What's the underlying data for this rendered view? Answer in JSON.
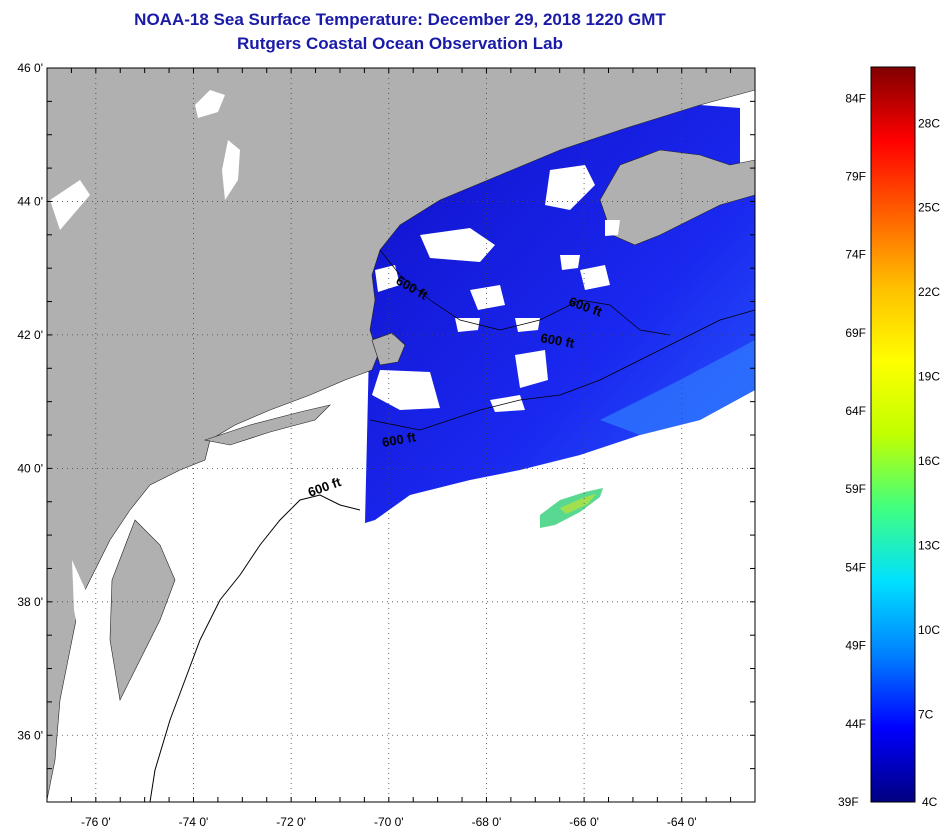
{
  "header": {
    "title": "NOAA-18 Sea Surface Temperature:  December 29, 2018 1220 GMT",
    "subtitle": "Rutgers Coastal Ocean Observation Lab"
  },
  "map": {
    "lat_range": [
      35,
      46
    ],
    "lon_range": [
      -77,
      -62.5
    ],
    "lat_labels": [
      {
        "lat": 46,
        "text": "46 0'"
      },
      {
        "lat": 44,
        "text": "44 0'"
      },
      {
        "lat": 42,
        "text": "42 0'"
      },
      {
        "lat": 40,
        "text": "40 0'"
      },
      {
        "lat": 38,
        "text": "38 0'"
      },
      {
        "lat": 36,
        "text": "36 0'"
      }
    ],
    "lon_labels": [
      {
        "lon": -76,
        "text": "-76 0'"
      },
      {
        "lon": -74,
        "text": "-74 0'"
      },
      {
        "lon": -72,
        "text": "-72 0'"
      },
      {
        "lon": -70,
        "text": "-70 0'"
      },
      {
        "lon": -68,
        "text": "-68 0'"
      },
      {
        "lon": -66,
        "text": "-66 0'"
      },
      {
        "lon": -64,
        "text": "-64 0'"
      }
    ],
    "contour_label": "600 ft",
    "land_color": "#b0b0b0",
    "cloud_color": "#ffffff"
  },
  "colorbar": {
    "colors": [
      "#000080",
      "#0000ff",
      "#0080ff",
      "#00e0ff",
      "#40ff80",
      "#c0ff00",
      "#ffff00",
      "#ffc000",
      "#ff6000",
      "#ff0000",
      "#800000"
    ],
    "fahrenheit": [
      "84F",
      "79F",
      "74F",
      "69F",
      "64F",
      "59F",
      "54F",
      "49F",
      "44F"
    ],
    "celsius": [
      "28C",
      "25C",
      "22C",
      "19C",
      "16C",
      "13C",
      "10C",
      "7C"
    ],
    "min_f": "39F",
    "min_c": "4C"
  }
}
